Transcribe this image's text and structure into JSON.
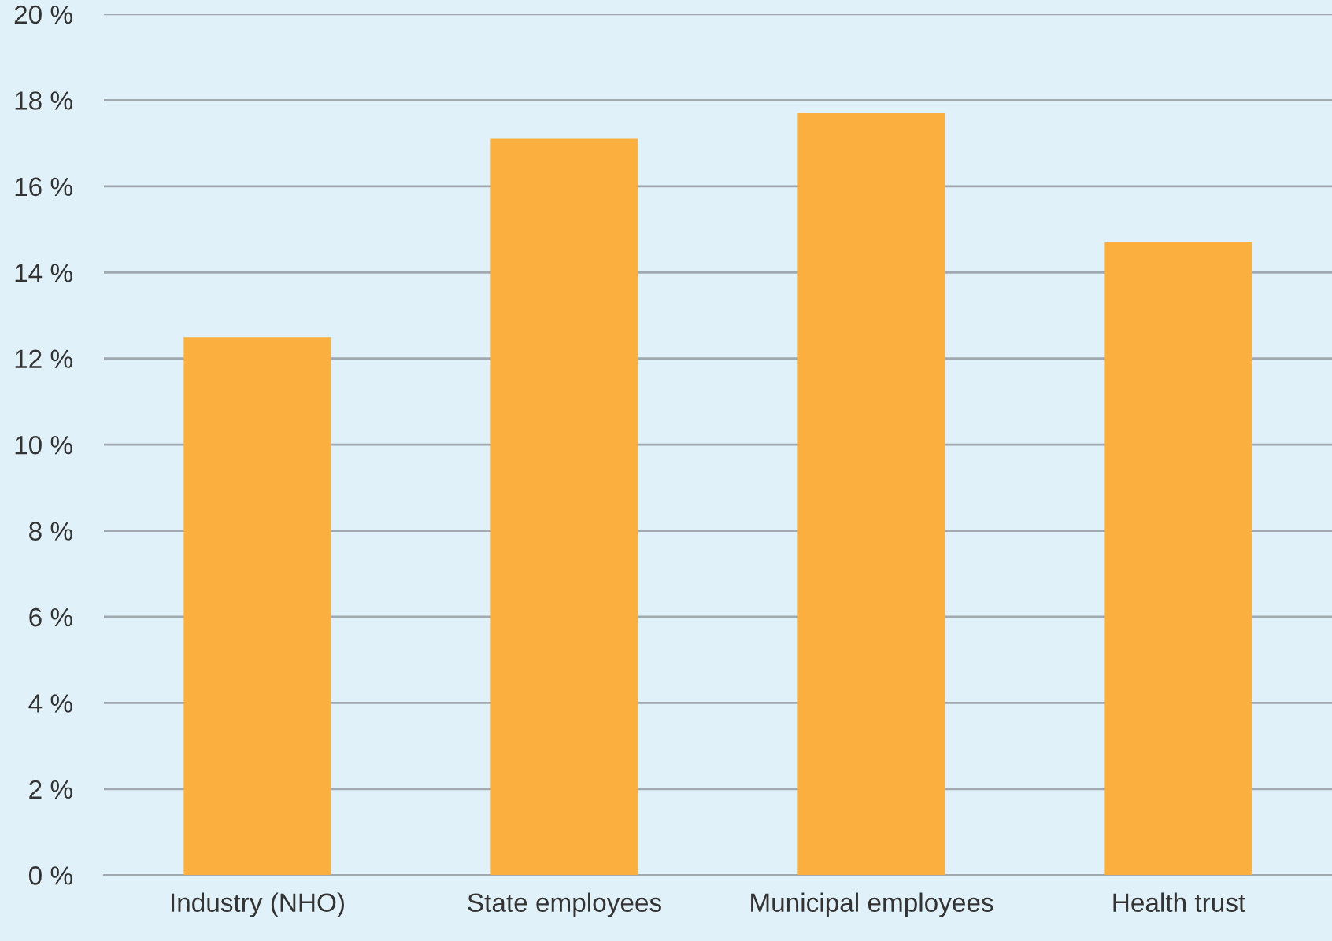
{
  "chart_data": {
    "type": "bar",
    "categories": [
      "Industry (NHO)",
      "State employees",
      "Municipal employees",
      "Health trust"
    ],
    "values": [
      12.5,
      17.1,
      17.7,
      14.7
    ],
    "color": "#fbaf3f",
    "ylim": [
      0,
      20
    ],
    "yticks": [
      {
        "value": 0,
        "label": "0 %"
      },
      {
        "value": 2,
        "label": "2 %"
      },
      {
        "value": 4,
        "label": "4 %"
      },
      {
        "value": 6,
        "label": "6 %"
      },
      {
        "value": 8,
        "label": "8 %"
      },
      {
        "value": 10,
        "label": "10 %"
      },
      {
        "value": 12,
        "label": "12 %"
      },
      {
        "value": 14,
        "label": "14 %"
      },
      {
        "value": 16,
        "label": "16 %"
      },
      {
        "value": 18,
        "label": "18 %"
      },
      {
        "value": 20,
        "label": "20 %"
      }
    ],
    "grid": "y"
  }
}
